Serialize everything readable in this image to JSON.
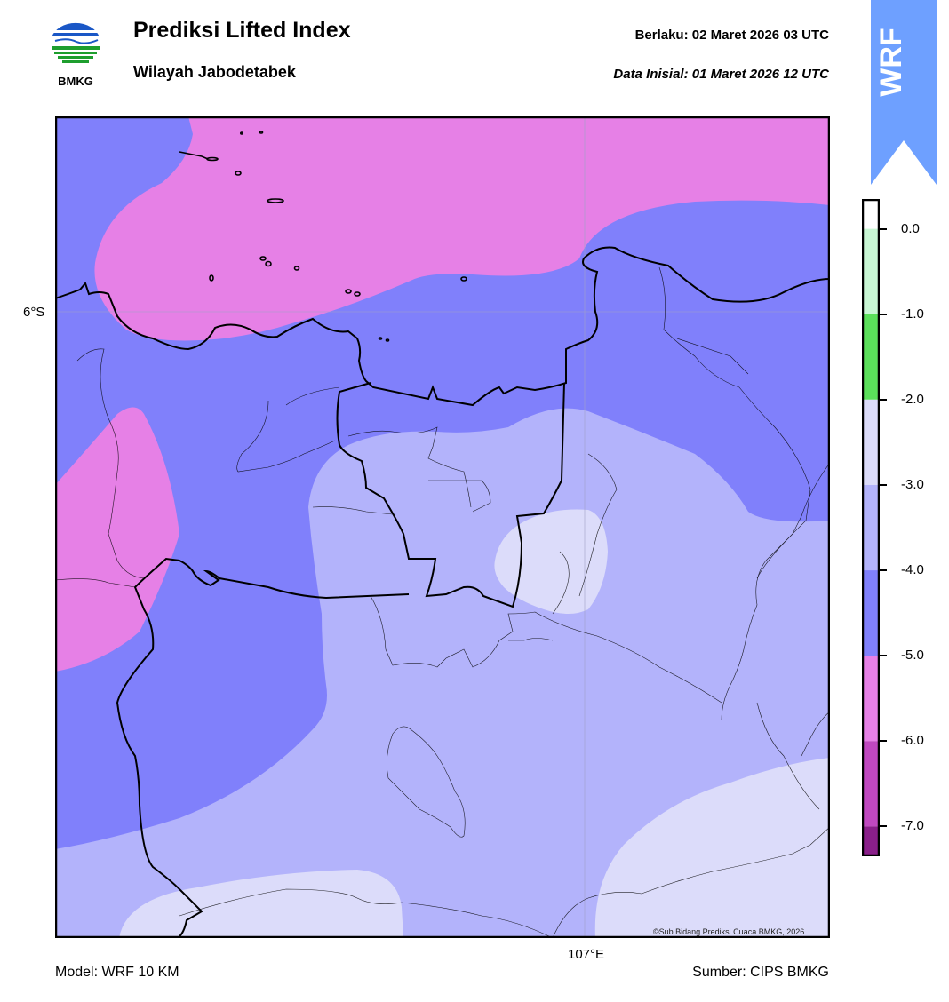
{
  "header": {
    "title": "Prediksi Lifted Index",
    "subtitle": "Wilayah Jabodetabek",
    "valid_label": "Berlaku:  02 Maret 2026 03 UTC",
    "init_label": "Data Inisial:  01 Maret 2026 12 UTC"
  },
  "logo": {
    "text": "BMKG",
    "icon": "bmkg-logo-icon"
  },
  "badge": {
    "text": "WRF",
    "color": "#6ea0ff"
  },
  "map": {
    "lat_label": "6°S",
    "lon_label": "107°E",
    "credit": "©Sub Bidang Prediksi Cuaca BMKG, 2026"
  },
  "footer": {
    "model": "Model: WRF 10 KM",
    "source": "Sumber: CIPS BMKG"
  },
  "colorbar": {
    "labels": [
      "0.0",
      "-1.0",
      "-2.0",
      "-3.0",
      "-4.0",
      "-5.0",
      "-6.0",
      "-7.0"
    ],
    "bands": [
      {
        "from": 0.0,
        "to": -1.0,
        "color": "#c8f7d4"
      },
      {
        "from": -1.0,
        "to": -2.0,
        "color": "#5be05b"
      },
      {
        "from": -2.0,
        "to": -3.0,
        "color": "#dcdcfa"
      },
      {
        "from": -3.0,
        "to": -4.0,
        "color": "#b3b3fb"
      },
      {
        "from": -4.0,
        "to": -5.0,
        "color": "#8080fb"
      },
      {
        "from": -5.0,
        "to": -6.0,
        "color": "#e680e6"
      },
      {
        "from": -6.0,
        "to": -7.0,
        "color": "#c048c0"
      },
      {
        "from": -7.0,
        "to": -7.4,
        "color": "#8a1f8a"
      }
    ]
  }
}
